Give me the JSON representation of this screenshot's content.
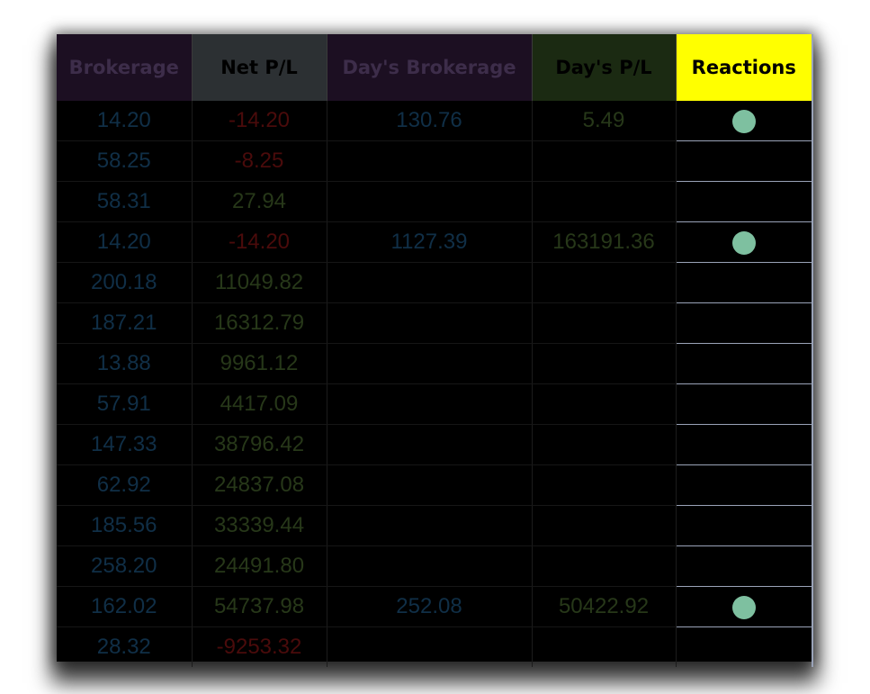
{
  "headers": {
    "brokerage": "Brokerage",
    "net_pl": "Net P/L",
    "days_brokerage": "Day's Brokerage",
    "days_pl": "Day's P/L",
    "reactions": "Reactions"
  },
  "colors": {
    "reactions_header_bg": "#ffff00",
    "reaction_dot": "#7ec0a0",
    "negative_text": "#4a0b0b",
    "positive_text": "#273819",
    "brokerage_text": "#102f47"
  },
  "rows": [
    {
      "brokerage": "14.20",
      "net_pl": "-14.20",
      "days_brokerage": "130.76",
      "days_pl": "5.49",
      "reaction": "green-dot-icon"
    },
    {
      "brokerage": "58.25",
      "net_pl": "-8.25",
      "days_brokerage": "",
      "days_pl": "",
      "reaction": ""
    },
    {
      "brokerage": "58.31",
      "net_pl": "27.94",
      "days_brokerage": "",
      "days_pl": "",
      "reaction": ""
    },
    {
      "brokerage": "14.20",
      "net_pl": "-14.20",
      "days_brokerage": "1127.39",
      "days_pl": "163191.36",
      "reaction": "green-dot-icon"
    },
    {
      "brokerage": "200.18",
      "net_pl": "11049.82",
      "days_brokerage": "",
      "days_pl": "",
      "reaction": ""
    },
    {
      "brokerage": "187.21",
      "net_pl": "16312.79",
      "days_brokerage": "",
      "days_pl": "",
      "reaction": ""
    },
    {
      "brokerage": "13.88",
      "net_pl": "9961.12",
      "days_brokerage": "",
      "days_pl": "",
      "reaction": ""
    },
    {
      "brokerage": "57.91",
      "net_pl": "4417.09",
      "days_brokerage": "",
      "days_pl": "",
      "reaction": ""
    },
    {
      "brokerage": "147.33",
      "net_pl": "38796.42",
      "days_brokerage": "",
      "days_pl": "",
      "reaction": ""
    },
    {
      "brokerage": "62.92",
      "net_pl": "24837.08",
      "days_brokerage": "",
      "days_pl": "",
      "reaction": ""
    },
    {
      "brokerage": "185.56",
      "net_pl": "33339.44",
      "days_brokerage": "",
      "days_pl": "",
      "reaction": ""
    },
    {
      "brokerage": "258.20",
      "net_pl": "24491.80",
      "days_brokerage": "",
      "days_pl": "",
      "reaction": ""
    },
    {
      "brokerage": "162.02",
      "net_pl": "54737.98",
      "days_brokerage": "252.08",
      "days_pl": "50422.92",
      "reaction": "green-dot-icon"
    },
    {
      "brokerage": "28.32",
      "net_pl": "-9253.32",
      "days_brokerage": "",
      "days_pl": "",
      "reaction": ""
    }
  ]
}
